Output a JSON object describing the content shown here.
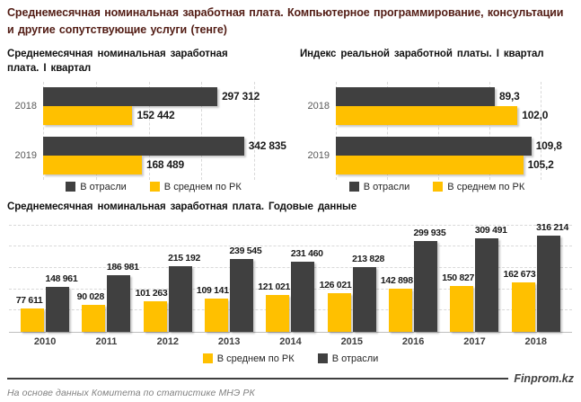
{
  "page": {
    "title": "Среднемесячная номинальная заработная плата. Компьютерное программирование, консультации и другие сопутствующие услуги (тенге)",
    "source_note": "На основе данных  Комитета по статистике МНЭ РК",
    "brand": "Finprom.kz"
  },
  "colors": {
    "industry_bar": "#404040",
    "average_bar": "#ffc000",
    "title_text": "#521c14",
    "gridline": "#d9d9d9",
    "axis_line": "#bfbfbf",
    "year_label": "#595959",
    "value_label": "#1a1a1a",
    "footer_line": "#3f3f3f",
    "source_text": "#808080"
  },
  "chart_data": [
    {
      "type": "bar",
      "orientation": "horizontal",
      "title": "Среднемесячная  номинальная  заработная плата. I квартал",
      "categories": [
        "2018",
        "2019"
      ],
      "series": [
        {
          "key": "industry",
          "name": "В отрасли",
          "color": "#404040",
          "values": [
            297312,
            342835
          ],
          "labels": [
            "297 312",
            "342 835"
          ]
        },
        {
          "key": "average",
          "name": "В среднем  по РК",
          "color": "#ffc000",
          "values": [
            152442,
            168489
          ],
          "labels": [
            "152 442",
            "168 489"
          ]
        }
      ],
      "xlim": [
        0,
        360000
      ],
      "grid": "vertical-dashed",
      "legend_position": "bottom",
      "legend": [
        {
          "key": "industry",
          "label": "В отрасли",
          "color": "#404040"
        },
        {
          "key": "average",
          "label": "В среднем  по РК",
          "color": "#ffc000"
        }
      ]
    },
    {
      "type": "bar",
      "orientation": "horizontal",
      "title": "Индекс  реальной  заработной  платы. I квартал",
      "categories": [
        "2018",
        "2019"
      ],
      "series": [
        {
          "key": "industry",
          "name": "В отрасли",
          "color": "#404040",
          "values": [
            89.3,
            109.8
          ],
          "labels": [
            "89,3",
            "109,8"
          ]
        },
        {
          "key": "average",
          "name": "В среднем  по РК",
          "color": "#ffc000",
          "values": [
            102.0,
            105.2
          ],
          "labels": [
            "102,0",
            "105,2"
          ]
        }
      ],
      "xlim": [
        0,
        115
      ],
      "grid": "vertical-dashed",
      "legend_position": "bottom",
      "legend": [
        {
          "key": "industry",
          "label": "В отрасли",
          "color": "#404040"
        },
        {
          "key": "average",
          "label": "В среднем  по РК",
          "color": "#ffc000"
        }
      ]
    },
    {
      "type": "bar",
      "orientation": "vertical",
      "title": "Среднемесячная  номинальная  заработная  плата.  Годовые данные",
      "categories": [
        "2010",
        "2011",
        "2012",
        "2013",
        "2014",
        "2015",
        "2016",
        "2017",
        "2018"
      ],
      "series": [
        {
          "key": "average",
          "name": "В среднем  по РК",
          "color": "#ffc000",
          "values": [
            77611,
            90028,
            101263,
            109141,
            121021,
            126021,
            142898,
            150827,
            162673
          ],
          "labels": [
            "77 611",
            "90 028",
            "101 263",
            "109 141",
            "121 021",
            "126 021",
            "142 898",
            "150 827",
            "162 673"
          ]
        },
        {
          "key": "industry",
          "name": "В отрасли",
          "color": "#404040",
          "values": [
            148961,
            186981,
            215192,
            239545,
            231460,
            213828,
            299935,
            309491,
            316214
          ],
          "labels": [
            "148 961",
            "186 981",
            "215 192",
            "239 545",
            "231 460",
            "213 828",
            "299 935",
            "309 491",
            "316 214"
          ]
        }
      ],
      "ylim": [
        0,
        350000
      ],
      "grid": "horizontal-dashed",
      "legend_position": "bottom",
      "legend": [
        {
          "key": "average",
          "label": "В среднем  по РК",
          "color": "#ffc000"
        },
        {
          "key": "industry",
          "label": "В отрасли",
          "color": "#404040"
        }
      ]
    }
  ]
}
